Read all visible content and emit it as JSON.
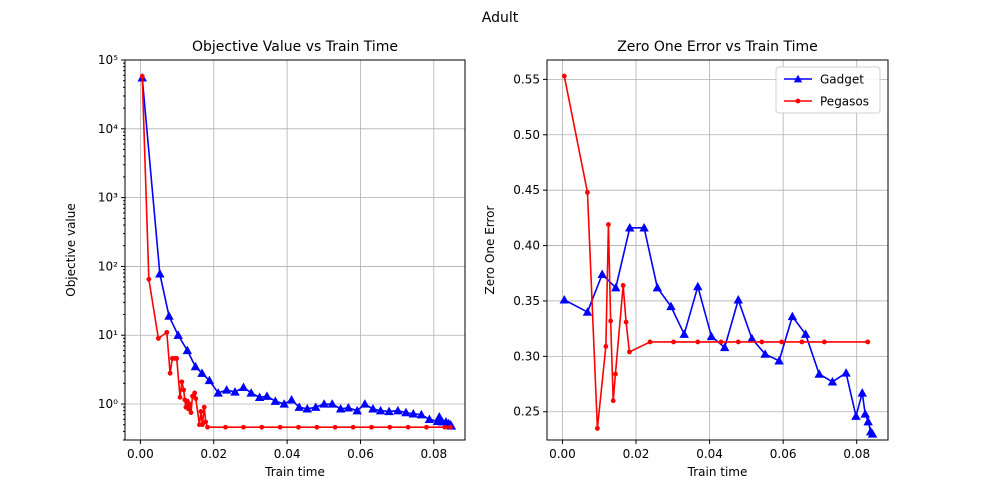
{
  "suptitle": "Adult",
  "chart_data": [
    {
      "type": "line",
      "title": "Objective Value vs Train Time",
      "xlabel": "Train time",
      "ylabel": "Objective value",
      "yscale": "log",
      "xlim": [
        -0.0042,
        0.0885
      ],
      "ylim": [
        0.3,
        100000
      ],
      "xticks": [
        "0.00",
        "0.02",
        "0.04",
        "0.06",
        "0.08"
      ],
      "xtick_values": [
        0,
        0.02,
        0.04,
        0.06,
        0.08
      ],
      "yticks": [
        "10⁰",
        "10¹",
        "10²",
        "10³",
        "10⁴",
        "10⁵"
      ],
      "ytick_values": [
        1,
        10,
        100,
        1000,
        10000,
        100000
      ],
      "grid": true,
      "series": [
        {
          "name": "Gadget",
          "color": "#0000ff",
          "marker": "triangle",
          "x": [
            0.0005,
            0.0053,
            0.0078,
            0.0103,
            0.0128,
            0.015,
            0.0168,
            0.0188,
            0.0212,
            0.0235,
            0.0258,
            0.0281,
            0.0302,
            0.0325,
            0.0345,
            0.0368,
            0.0392,
            0.0412,
            0.0433,
            0.0455,
            0.0478,
            0.0501,
            0.0523,
            0.0546,
            0.0567,
            0.0591,
            0.0612,
            0.0634,
            0.0655,
            0.0678,
            0.0702,
            0.0724,
            0.0744,
            0.0766,
            0.0788,
            0.081,
            0.0815,
            0.0823,
            0.0833,
            0.084,
            0.0845,
            0.0848
          ],
          "y": [
            55000,
            78,
            19,
            10,
            6,
            3.5,
            2.8,
            2.2,
            1.45,
            1.6,
            1.5,
            1.75,
            1.45,
            1.25,
            1.3,
            1.1,
            1.0,
            1.15,
            0.9,
            0.85,
            0.9,
            1.0,
            1.0,
            0.85,
            0.88,
            0.8,
            1.0,
            0.85,
            0.8,
            0.78,
            0.8,
            0.75,
            0.72,
            0.7,
            0.6,
            0.56,
            0.65,
            0.55,
            0.55,
            0.52,
            0.5,
            0.48
          ]
        },
        {
          "name": "Pegasos",
          "color": "#ff0000",
          "marker": "circle",
          "x": [
            0.0005,
            0.0023,
            0.0049,
            0.0072,
            0.0081,
            0.0087,
            0.0094,
            0.0099,
            0.0108,
            0.0113,
            0.0118,
            0.0121,
            0.0124,
            0.0128,
            0.0131,
            0.0134,
            0.0138,
            0.0142,
            0.0148,
            0.0151,
            0.0161,
            0.0165,
            0.0169,
            0.0174,
            0.0178,
            0.0183,
            0.0232,
            0.0281,
            0.0331,
            0.0381,
            0.0431,
            0.0481,
            0.0531,
            0.058,
            0.063,
            0.068,
            0.073,
            0.078,
            0.083,
            0.0845
          ],
          "y": [
            58000,
            65,
            9,
            11,
            2.8,
            4.6,
            4.6,
            4.6,
            1.25,
            2.1,
            1.6,
            1.15,
            0.9,
            1.1,
            0.85,
            1.0,
            0.75,
            1.3,
            1.45,
            1.2,
            0.5,
            0.78,
            0.5,
            0.9,
            0.55,
            0.46,
            0.46,
            0.46,
            0.46,
            0.46,
            0.46,
            0.46,
            0.46,
            0.46,
            0.46,
            0.46,
            0.46,
            0.46,
            0.46,
            0.46
          ]
        }
      ]
    },
    {
      "type": "line",
      "title": "Zero One Error vs Train Time",
      "xlabel": "Train time",
      "ylabel": "Zero One Error",
      "yscale": "linear",
      "xlim": [
        -0.0042,
        0.0885
      ],
      "ylim": [
        0.2245,
        0.5675
      ],
      "xticks": [
        "0.00",
        "0.02",
        "0.04",
        "0.06",
        "0.08"
      ],
      "xtick_values": [
        0,
        0.02,
        0.04,
        0.06,
        0.08
      ],
      "yticks": [
        "0.25",
        "0.30",
        "0.35",
        "0.40",
        "0.45",
        "0.50",
        "0.55"
      ],
      "ytick_values": [
        0.25,
        0.3,
        0.35,
        0.4,
        0.45,
        0.5,
        0.55
      ],
      "grid": true,
      "legend": "top-right",
      "series": [
        {
          "name": "Gadget",
          "color": "#0000ff",
          "marker": "triangle",
          "x": [
            0.0005,
            0.0068,
            0.0108,
            0.0145,
            0.0183,
            0.0222,
            0.0258,
            0.0295,
            0.0331,
            0.0368,
            0.0405,
            0.0441,
            0.0478,
            0.0515,
            0.0551,
            0.0589,
            0.0625,
            0.0661,
            0.0698,
            0.0734,
            0.0771,
            0.0798,
            0.0815,
            0.0823,
            0.0831,
            0.0838,
            0.0843
          ],
          "y": [
            0.351,
            0.34,
            0.374,
            0.362,
            0.416,
            0.416,
            0.362,
            0.345,
            0.32,
            0.363,
            0.318,
            0.308,
            0.351,
            0.316,
            0.302,
            0.296,
            0.336,
            0.32,
            0.284,
            0.277,
            0.285,
            0.246,
            0.267,
            0.248,
            0.241,
            0.232,
            0.23
          ]
        },
        {
          "name": "Pegasos",
          "color": "#ff0000",
          "marker": "circle",
          "x": [
            0.0005,
            0.0068,
            0.0095,
            0.0118,
            0.0125,
            0.0131,
            0.0138,
            0.0144,
            0.0165,
            0.0173,
            0.0182,
            0.0238,
            0.0302,
            0.0368,
            0.0431,
            0.0478,
            0.0542,
            0.0596,
            0.0651,
            0.0712,
            0.083
          ],
          "y": [
            0.553,
            0.448,
            0.235,
            0.309,
            0.419,
            0.332,
            0.26,
            0.284,
            0.364,
            0.331,
            0.304,
            0.313,
            0.313,
            0.313,
            0.313,
            0.313,
            0.313,
            0.313,
            0.313,
            0.313,
            0.313
          ]
        }
      ]
    }
  ]
}
